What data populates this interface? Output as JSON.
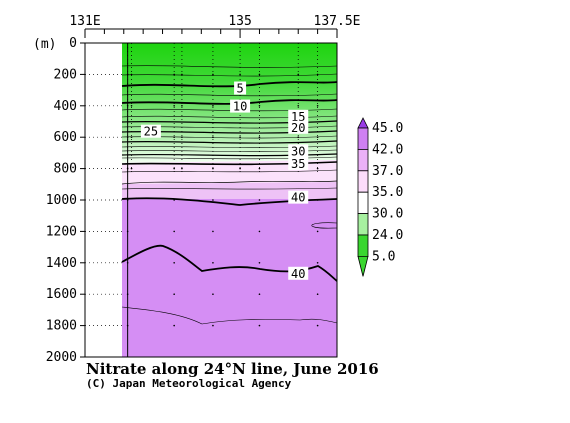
{
  "chart_data": {
    "type": "contour",
    "title": "Nitrate along 24°N line, June 2016",
    "credit": "(C) Japan Meteorological Agency",
    "y_unit_label": "(m)",
    "xlim": [
      131,
      137.5
    ],
    "ylim": [
      0,
      2000
    ],
    "x_tick_labels": [
      {
        "value": 131,
        "label": "131E"
      },
      {
        "value": 135,
        "label": "135"
      },
      {
        "value": 137.5,
        "label": "137.5E"
      }
    ],
    "x_minor_ticks": [
      131.5,
      132,
      132.5,
      133,
      133.5,
      134,
      134.5,
      135.5,
      136,
      136.5,
      137
    ],
    "y_ticks": [
      0,
      200,
      400,
      600,
      800,
      1000,
      1200,
      1400,
      1600,
      1800,
      2000
    ],
    "data_start_x": 132.1,
    "station_x": [
      132.1,
      132.2,
      133.3,
      133.5,
      134.3,
      135,
      135.5,
      136.5,
      137
    ],
    "colorbar": {
      "labels": [
        "45.0",
        "42.0",
        "37.0",
        "35.0",
        "30.0",
        "24.0",
        "5.0"
      ],
      "colors": [
        "#9a3ce6",
        "#cf80f2",
        "#ebb1f7",
        "#fcdcfb",
        "#ffffff",
        "#a7f0a0",
        "#39d62f"
      ]
    },
    "contour_labels": [
      {
        "text": "5",
        "x": 135.0,
        "y": 290
      },
      {
        "text": "10",
        "x": 135.0,
        "y": 405
      },
      {
        "text": "15",
        "x": 136.5,
        "y": 470
      },
      {
        "text": "20",
        "x": 136.5,
        "y": 540
      },
      {
        "text": "25",
        "x": 132.7,
        "y": 565
      },
      {
        "text": "30",
        "x": 136.5,
        "y": 690
      },
      {
        "text": "35",
        "x": 136.5,
        "y": 770
      },
      {
        "text": "40",
        "x": 136.5,
        "y": 985
      },
      {
        "text": "40",
        "x": 136.5,
        "y": 1470
      }
    ]
  }
}
